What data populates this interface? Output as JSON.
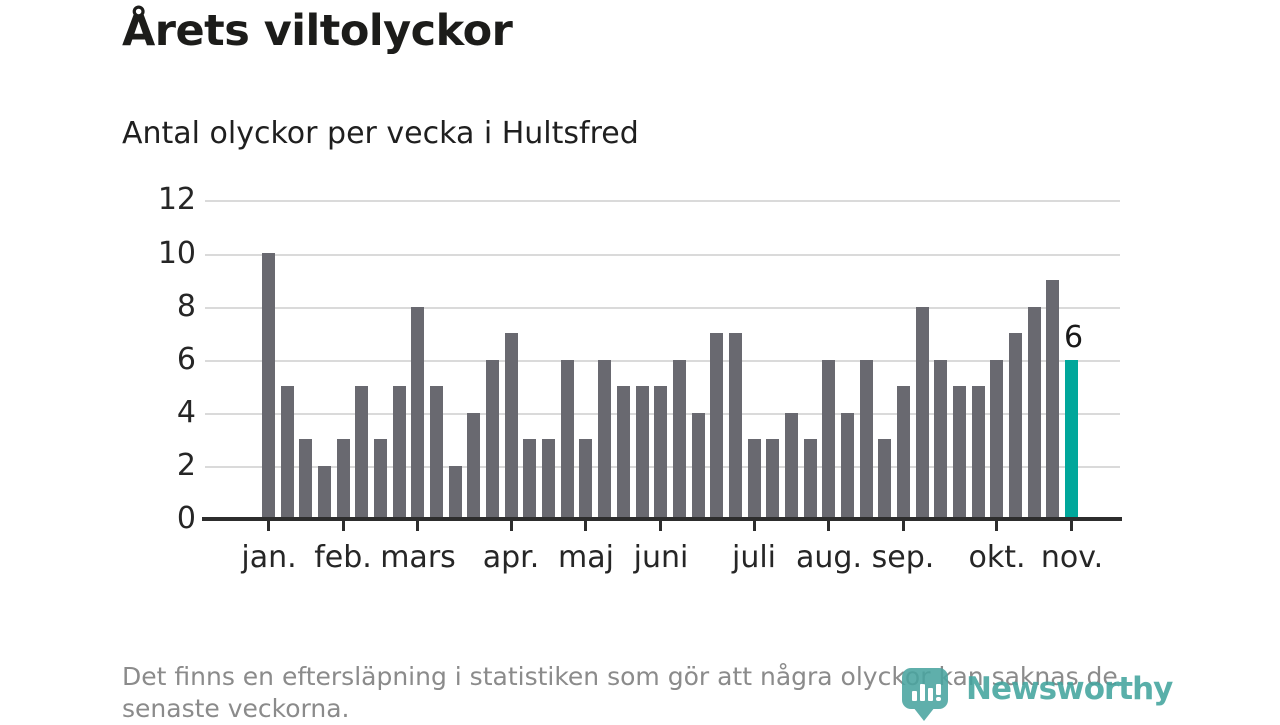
{
  "header": {
    "title": "Årets viltolyckor",
    "subtitle": "Antal olyckor per vecka i Hultsfred"
  },
  "chart_data": {
    "type": "bar",
    "title": "Årets viltolyckor",
    "subtitle": "Antal olyckor per vecka i Hultsfred",
    "x_description": "veckor (weeks) jan–nov, 44 bars",
    "values": [
      10,
      5,
      3,
      2,
      3,
      5,
      3,
      5,
      8,
      5,
      2,
      4,
      6,
      7,
      3,
      3,
      6,
      3,
      6,
      5,
      5,
      5,
      6,
      4,
      7,
      7,
      3,
      3,
      4,
      3,
      6,
      4,
      6,
      3,
      5,
      8,
      6,
      5,
      5,
      6,
      7,
      8,
      9,
      6
    ],
    "months": [
      {
        "label": "jan.",
        "bar_index": 0
      },
      {
        "label": "feb.",
        "bar_index": 4
      },
      {
        "label": "mars",
        "bar_index": 8
      },
      {
        "label": "apr.",
        "bar_index": 13
      },
      {
        "label": "maj",
        "bar_index": 17
      },
      {
        "label": "juni",
        "bar_index": 21
      },
      {
        "label": "juli",
        "bar_index": 26
      },
      {
        "label": "aug.",
        "bar_index": 30
      },
      {
        "label": "sep.",
        "bar_index": 34
      },
      {
        "label": "okt.",
        "bar_index": 39
      },
      {
        "label": "nov.",
        "bar_index": 43
      }
    ],
    "yticks": [
      0,
      2,
      4,
      6,
      8,
      10,
      12
    ],
    "ylim": [
      0,
      12
    ],
    "grid": true,
    "legend": "none",
    "highlight_last_bar": true,
    "last_bar_label": "6",
    "colors": {
      "bar": "#696970",
      "highlight": "#00a79b",
      "axis": "#2d2d2d",
      "gridline": "#dadada",
      "label": "#262626"
    }
  },
  "footer": {
    "lines": [
      "Det finns en eftersläpning i statistiken som gör att några olyckor kan saknas de",
      "senaste veckorna."
    ]
  },
  "logo": {
    "name": "Newsworthy",
    "icon": "newsworthy-speech-bubble-barchart",
    "color": "#43a49e"
  }
}
